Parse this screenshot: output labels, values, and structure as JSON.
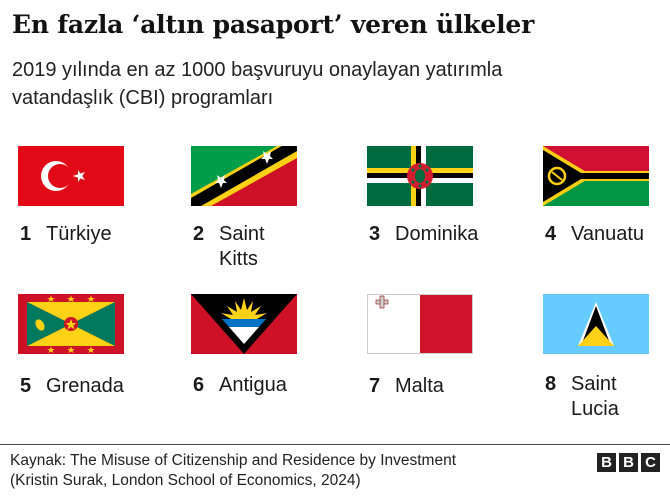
{
  "header": {
    "title": "En fazla ‘altın pasaport’ veren ülkeler",
    "subtitle_line1": "2019 yılında en az 1000 başvuruyu onaylayan yatırımla",
    "subtitle_line2": "vatandaşlık (CBI) programları"
  },
  "countries": [
    {
      "rank": "1",
      "name": "Türkiye",
      "name_line2": ""
    },
    {
      "rank": "2",
      "name": "Saint",
      "name_line2": "Kitts"
    },
    {
      "rank": "3",
      "name": "Dominika",
      "name_line2": ""
    },
    {
      "rank": "4",
      "name": "Vanuatu",
      "name_line2": ""
    },
    {
      "rank": "5",
      "name": "Grenada",
      "name_line2": ""
    },
    {
      "rank": "6",
      "name": "Antigua",
      "name_line2": ""
    },
    {
      "rank": "7",
      "name": "Malta",
      "name_line2": ""
    },
    {
      "rank": "8",
      "name": "Saint",
      "name_line2": "Lucia"
    }
  ],
  "footer": {
    "source_line1": "Kaynak: The Misuse of Citizenship and Residence by Investment",
    "source_line2": "(Kristin Surak, London School of Economics, 2024)",
    "logo": [
      "B",
      "B",
      "C"
    ]
  }
}
